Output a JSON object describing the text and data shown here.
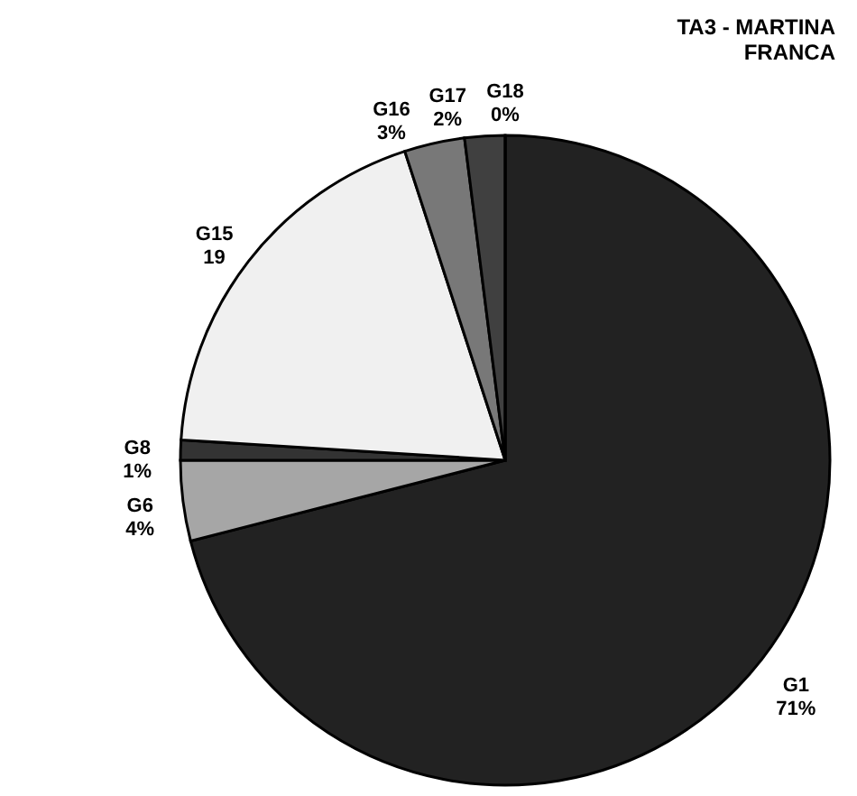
{
  "chart_data": {
    "type": "pie",
    "title": "TA3 - MARTINA FRANCA",
    "categories": [
      "G1",
      "G6",
      "G8",
      "G15",
      "G16",
      "G17",
      "G18"
    ],
    "values": [
      71,
      4,
      1,
      19,
      3,
      2,
      0
    ],
    "value_labels": [
      "71%",
      "4%",
      "1%",
      "19",
      "3%",
      "2%",
      "0%"
    ],
    "colors": [
      "#222222",
      "#a6a6a6",
      "#333333",
      "#f0f0f0",
      "#787878",
      "#404040",
      "#ffffff"
    ],
    "legend": false
  }
}
